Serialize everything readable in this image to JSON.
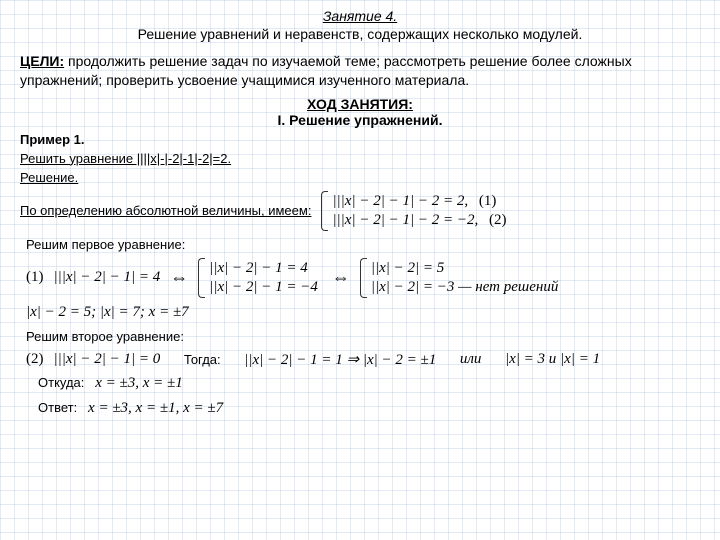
{
  "title": "Занятие 4.",
  "subtitle": "Решение уравнений и неравенств, содержащих несколько модулей.",
  "goals_lead": "ЦЕЛИ:",
  "goals_text": " продолжить решение задач по изучаемой теме; рассмотреть решение более сложных упражнений; проверить усвоение учащимися изученного материала.",
  "sec_head1": "ХОД ЗАНЯТИЯ:",
  "sec_head2": "I. Решение упражнений.",
  "ex1_label": "Пример 1.",
  "ex1_task": "Решить уравнение ||||x|-|-2|-1|-2|=2.",
  "ex1_sol": "Решение.",
  "ex1_def": "По определению абсолютной величины, имеем:",
  "eq_r1": "|||x| − 2| − 1| − 2 = 2,",
  "eq_r1_num": "(1)",
  "eq_r2": "|||x| − 2| − 1| − 2 = −2,",
  "eq_r2_num": "(2)",
  "solve1": "Решим первое уравнение:",
  "eq1_lbl": "(1)",
  "eq1_a": "|||x| − 2| − 1| = 4",
  "eq1_arrow": "⇔",
  "eq1_b1": "||x| − 2| − 1 = 4",
  "eq1_b2": "||x| − 2| − 1 = −4",
  "eq1_c1": "||x| − 2| = 5",
  "eq1_c2": "||x| − 2| = −3 — нет решений",
  "eq1_d": "|x| − 2 = 5;  |x| = 7;  x = ±7",
  "solve2": "Решим второе уравнение:",
  "eq2_lbl": "(2)",
  "eq2_a": "|||x| − 2| − 1| = 0",
  "eq2_then": "Тогда:",
  "eq2_b": "||x| − 2| − 1 = 1  ⇒  |x| − 2 = ±1",
  "eq2_or": "или",
  "eq2_c": "|x| = 3  и  |x| = 1",
  "whence": "Откуда:",
  "whence_eq": "x = ±3,  x = ±1",
  "answer": "Ответ:",
  "answer_eq": "x = ±3, x = ±1, x = ±7"
}
